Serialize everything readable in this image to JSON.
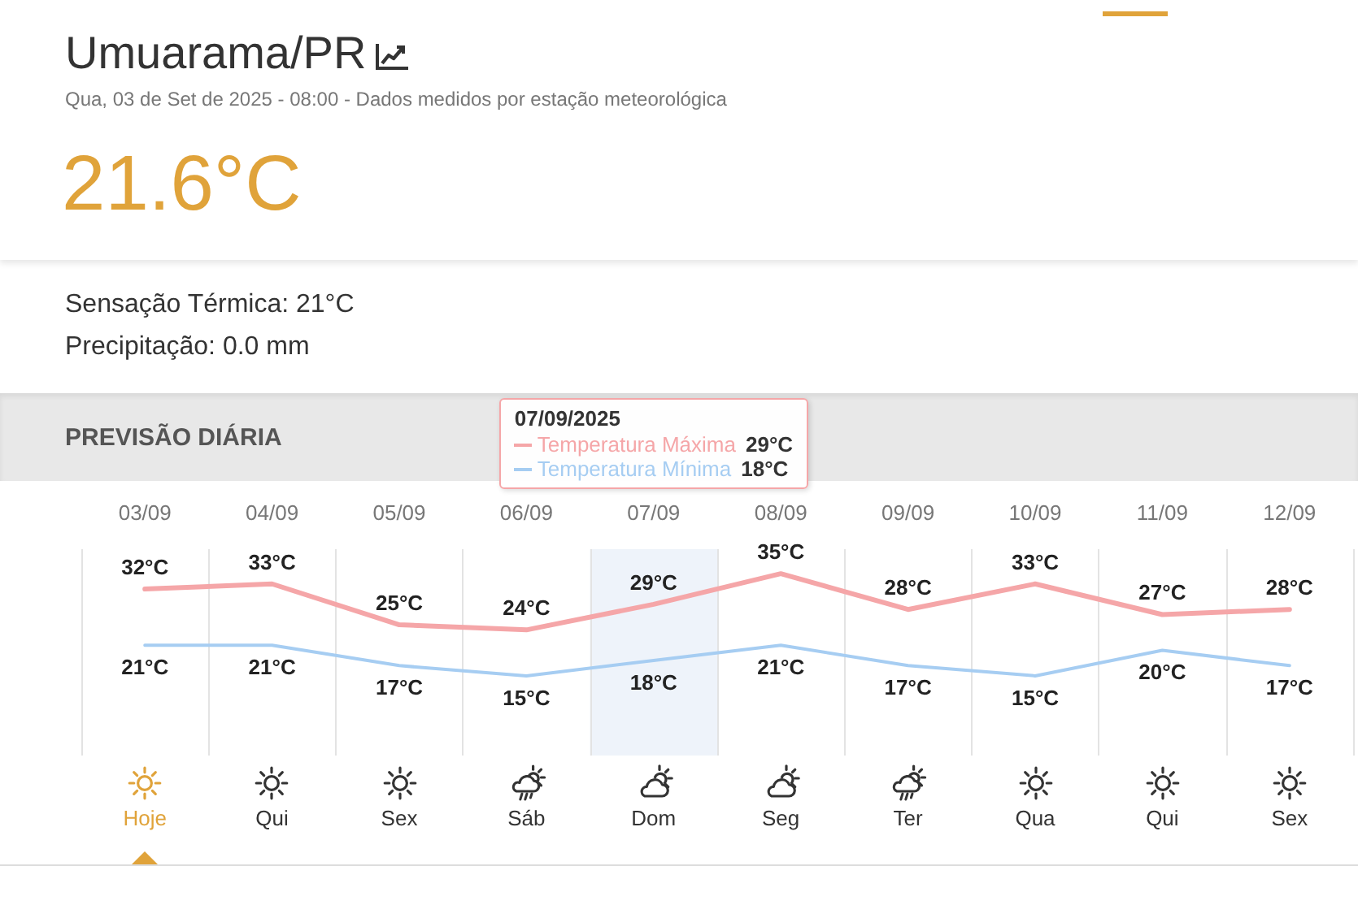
{
  "chart_data": {
    "type": "line",
    "title": "Umuarama/PR",
    "subtitle": "Qua, 03 de Set de 2025 - 08:00 - Dados medidos por estação meteorológica",
    "categories": [
      "03/09",
      "04/09",
      "05/09",
      "06/09",
      "07/09",
      "08/09",
      "09/09",
      "10/09",
      "11/09",
      "12/09"
    ],
    "series": [
      {
        "name": "Temperatura Máxima",
        "color": "#f5a6a8",
        "values": [
          32,
          33,
          25,
          24,
          29,
          35,
          28,
          33,
          27,
          28
        ],
        "value_labels": [
          "32°C",
          "33°C",
          "25°C",
          "24°C",
          "29°C",
          "35°C",
          "28°C",
          "33°C",
          "27°C",
          "28°C"
        ]
      },
      {
        "name": "Temperatura Mínima",
        "color": "#a6cdf2",
        "values": [
          21,
          21,
          17,
          15,
          18,
          21,
          17,
          15,
          20,
          17
        ],
        "value_labels": [
          "21°C",
          "21°C",
          "17°C",
          "15°C",
          "18°C",
          "21°C",
          "17°C",
          "15°C",
          "20°C",
          "17°C"
        ]
      }
    ],
    "grid": "x",
    "legend": "top",
    "bands": [
      {
        "axis": "x",
        "from": "07/09",
        "to": "07/09",
        "color": "#eef3fa"
      }
    ],
    "annotations": [
      "21.6°C",
      "Sensação Térmica: 21°C",
      "Precipitação: 0.0 mm",
      "PREVISÃO DIÁRIA",
      "07/09/2025",
      "Hoje",
      "Qui",
      "Sex",
      "Sáb",
      "Dom",
      "Seg",
      "Ter",
      "Qua",
      "Qui",
      "Sex"
    ]
  }
}
